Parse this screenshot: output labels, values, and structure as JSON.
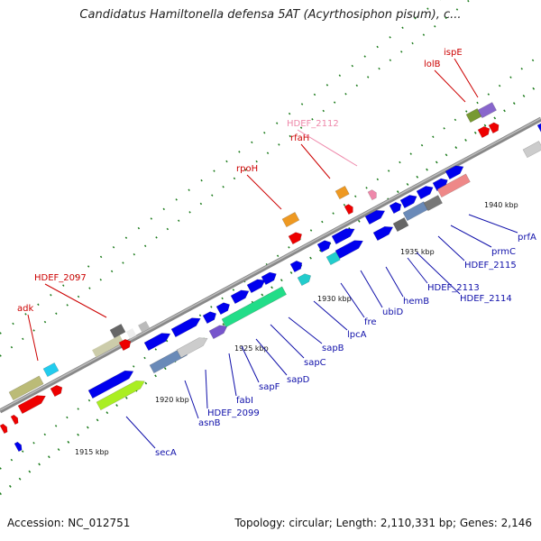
{
  "title": "Candidatus Hamiltonella defensa 5AT (Acyrthosiphon pisum), c...",
  "footer": {
    "accession": "Accession: NC_012751",
    "info": "Topology: circular; Length: 2,110,331 bp; Genes: 2,146"
  },
  "kbp_labels": [
    "1915 kbp",
    "1920 kbp",
    "1925 kbp",
    "1930 kbp",
    "1935 kbp",
    "1940 kbp"
  ],
  "labels_top": [
    "adk",
    "HDEF_2097",
    "rpoH",
    "rfaH",
    "HDEF_2112",
    "lolB",
    "ispE"
  ],
  "labels_bottom": [
    "secA",
    "asnB",
    "HDEF_2099",
    "fabI",
    "sapF",
    "sapD",
    "sapC",
    "sapB",
    "lpcA",
    "fre",
    "ubiD",
    "hemB",
    "HDEF_2113",
    "HDEF_2114",
    "HDEF_2115",
    "prmC",
    "prfA"
  ],
  "colors": {
    "forward": "#0000ee",
    "reverse": "#ee0000",
    "backbone": "#888888",
    "tick": "#1a7a1a",
    "label_forward": "#1010aa",
    "label_reverse": "#cc0000",
    "label_pseudo": "#ee88aa"
  }
}
